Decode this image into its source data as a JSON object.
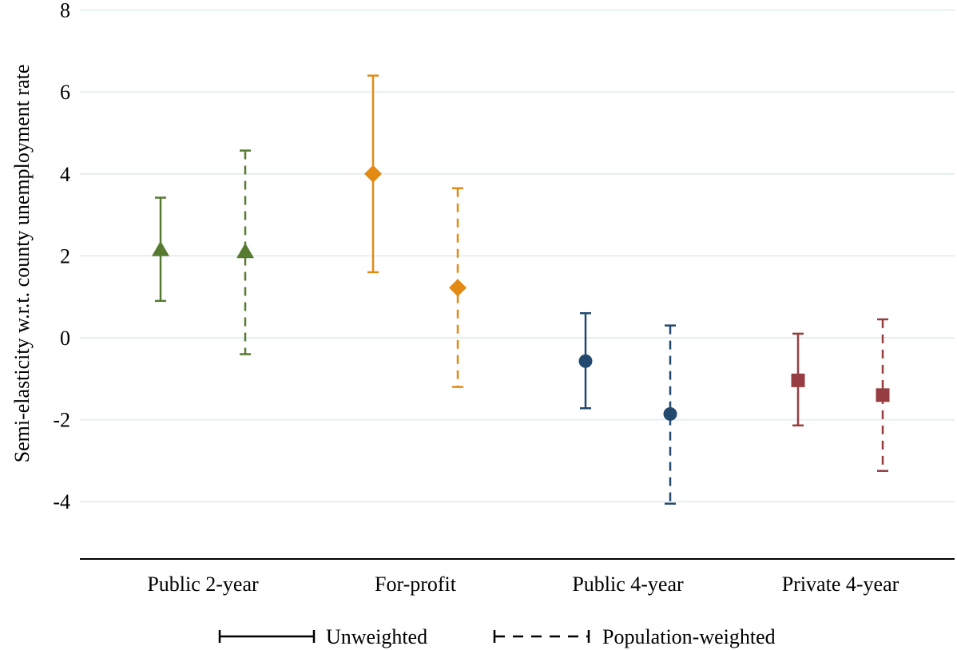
{
  "chart_data": {
    "type": "scatter",
    "ylabel": "Semi-elasticity w.r.t. county unemployment rate",
    "ylim": [
      -5.4,
      8
    ],
    "yticks": [
      8,
      6,
      4,
      2,
      0,
      -2,
      -4
    ],
    "yticklabels": [
      "8",
      "6",
      "4",
      "2",
      "0",
      "-2",
      "-4"
    ],
    "grid": true,
    "categories": [
      "Public 2-year",
      "For-profit",
      "Public 4-year",
      "Private 4-year"
    ],
    "legend_position": "bottom",
    "series": [
      {
        "name": "Unweighted",
        "line_style": "solid",
        "estimates": [
          2.15,
          4.0,
          -0.57,
          -1.04
        ],
        "ci_low": [
          0.9,
          1.6,
          -1.72,
          -2.14
        ],
        "ci_high": [
          3.42,
          6.4,
          0.6,
          0.1
        ]
      },
      {
        "name": "Population-weighted",
        "line_style": "dashed",
        "estimates": [
          2.1,
          1.22,
          -1.86,
          -1.4
        ],
        "ci_low": [
          -0.4,
          -1.2,
          -4.05,
          -3.25
        ],
        "ci_high": [
          4.57,
          3.65,
          0.3,
          0.45
        ]
      }
    ],
    "category_colors": [
      "#567a2f",
      "#e28a14",
      "#23496e",
      "#963d41"
    ],
    "category_markers": [
      "triangle",
      "diamond",
      "circle",
      "square"
    ]
  }
}
